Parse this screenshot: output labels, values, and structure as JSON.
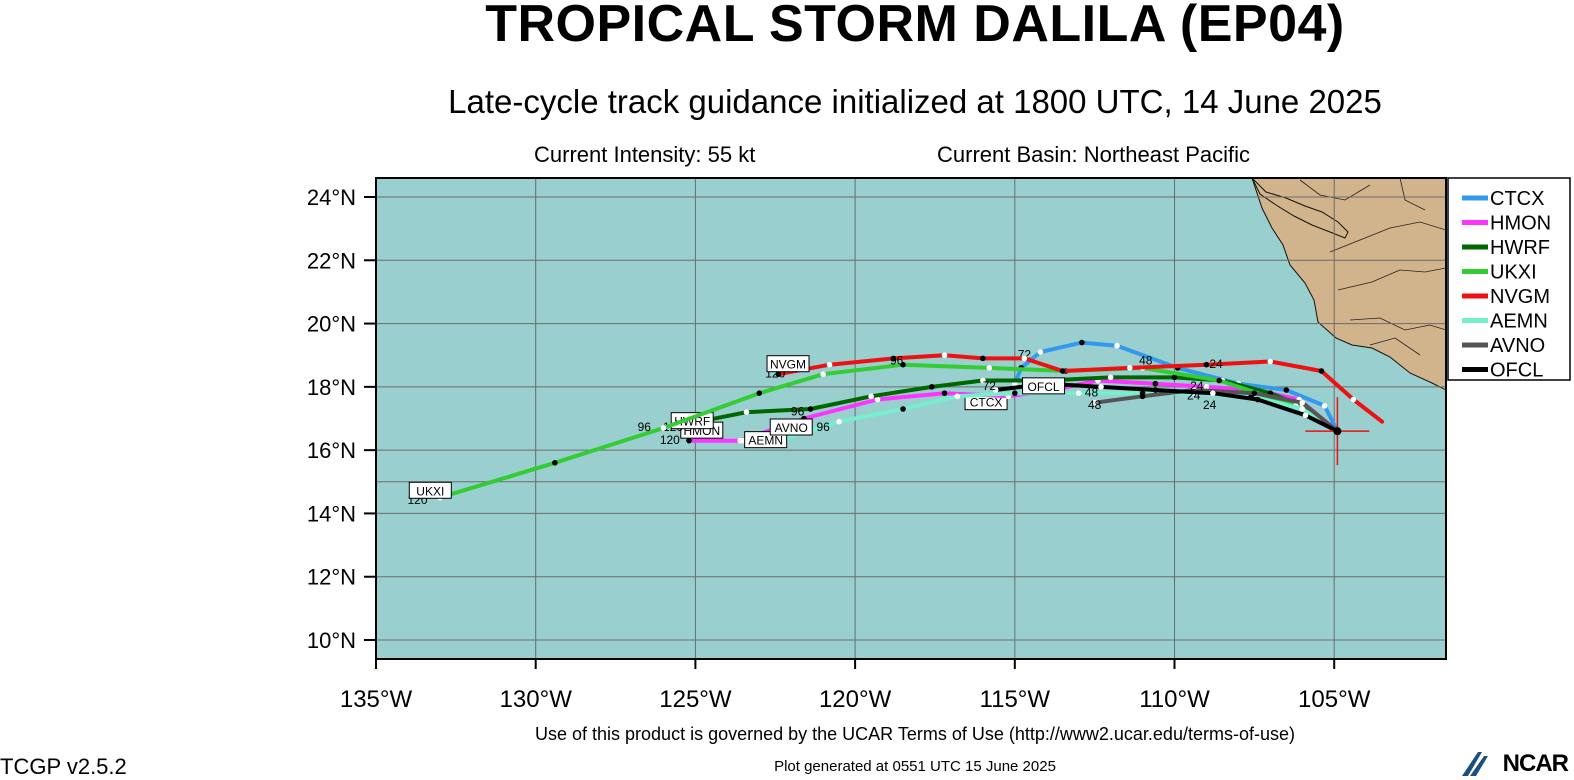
{
  "title": "TROPICAL STORM DALILA (EP04)",
  "subtitle": "Late-cycle track guidance initialized at 1800 UTC, 14 June 2025",
  "current_intensity": "Current Intensity: 55 kt",
  "current_basin": "Current Basin: Northeast Pacific",
  "terms": "Use of this product is governed by the UCAR Terms of Use (http://www2.ucar.edu/terms-of-use)",
  "version": "TCGP v2.5.2",
  "generated": "Plot generated at 0551 UTC   15 June 2025",
  "logo_text": "NCAR",
  "colors": {
    "ocean": "#99cfcf",
    "land": "#d2b48c",
    "grid": "#6b6b6b"
  },
  "chart_data": {
    "type": "map",
    "lon_range": [
      -135,
      -101.5
    ],
    "lat_range": [
      9.4,
      24.6
    ],
    "lon_ticks": [
      -135,
      -130,
      -125,
      -120,
      -115,
      -110,
      -105
    ],
    "lon_tick_labels": [
      "135°W",
      "130°W",
      "125°W",
      "120°W",
      "115°W",
      "110°W",
      "105°W"
    ],
    "lat_ticks": [
      10,
      12,
      14,
      16,
      18,
      20,
      22,
      24
    ],
    "lat_tick_labels": [
      "10°N",
      "12°N",
      "14°N",
      "16°N",
      "18°N",
      "20°N",
      "22°N",
      "24°N"
    ],
    "grid": true,
    "legend_position": "right",
    "initial_position": {
      "lon": -104.9,
      "lat": 16.6
    },
    "series": [
      {
        "name": "CTCX",
        "color": "#3399ee",
        "points": [
          [
            -104.9,
            16.6
          ],
          [
            -105.3,
            17.4
          ],
          [
            -106.5,
            17.9
          ],
          [
            -108.0,
            18.1
          ],
          [
            -109.9,
            18.6
          ],
          [
            -111.8,
            19.3
          ],
          [
            -112.9,
            19.4
          ],
          [
            -114.2,
            19.1
          ],
          [
            -114.8,
            18.6
          ],
          [
            -115.0,
            18.1
          ]
        ],
        "labels": [
          {
            "text": "72",
            "lon": -114.7,
            "lat": 18.9
          }
        ],
        "end_label": {
          "text": "CTCX",
          "lon": -115.9,
          "lat": 17.5
        }
      },
      {
        "name": "HMON",
        "color": "#ff33ff",
        "points": [
          [
            -104.9,
            16.6
          ],
          [
            -106.1,
            17.6
          ],
          [
            -107.5,
            17.9
          ],
          [
            -109.0,
            18.0
          ],
          [
            -110.6,
            18.1
          ],
          [
            -112.4,
            18.2
          ],
          [
            -113.8,
            17.9
          ],
          [
            -115.2,
            17.7
          ],
          [
            -117.2,
            17.8
          ],
          [
            -119.3,
            17.6
          ],
          [
            -121.6,
            17.0
          ],
          [
            -123.6,
            16.3
          ],
          [
            -125.2,
            16.3
          ]
        ],
        "labels": [
          {
            "text": "120",
            "lon": -125.8,
            "lat": 16.2
          }
        ],
        "end_label": {
          "text": "HMON",
          "lon": -124.8,
          "lat": 16.6
        }
      },
      {
        "name": "HWRF",
        "color": "#006600",
        "points": [
          [
            -104.9,
            16.6
          ],
          [
            -106.0,
            17.4
          ],
          [
            -107.0,
            17.8
          ],
          [
            -108.5,
            18.2
          ],
          [
            -110.0,
            18.3
          ],
          [
            -112.0,
            18.3
          ],
          [
            -114.0,
            18.2
          ],
          [
            -116.0,
            18.2
          ],
          [
            -117.6,
            18.0
          ],
          [
            -119.5,
            17.7
          ],
          [
            -121.4,
            17.3
          ],
          [
            -123.4,
            17.2
          ],
          [
            -124.9,
            16.9
          ]
        ],
        "labels": [
          {
            "text": "120",
            "lon": -125.7,
            "lat": 16.6
          },
          {
            "text": "96",
            "lon": -121.8,
            "lat": 17.1
          }
        ],
        "end_label": {
          "text": "HWRF",
          "lon": -125.1,
          "lat": 16.9
        }
      },
      {
        "name": "UKXI",
        "color": "#33cc33",
        "points": [
          [
            -104.9,
            16.6
          ],
          [
            -106.2,
            17.4
          ],
          [
            -108.6,
            18.2
          ],
          [
            -111.0,
            18.6
          ],
          [
            -113.4,
            18.5
          ],
          [
            -115.8,
            18.6
          ],
          [
            -118.5,
            18.7
          ],
          [
            -121.0,
            18.4
          ],
          [
            -123.0,
            17.8
          ],
          [
            -126.0,
            16.7
          ],
          [
            -129.4,
            15.6
          ],
          [
            -133.0,
            14.5
          ]
        ],
        "labels": [
          {
            "text": "96",
            "lon": -126.6,
            "lat": 16.6
          },
          {
            "text": "120",
            "lon": -133.7,
            "lat": 14.3
          }
        ],
        "end_label": {
          "text": "UKXI",
          "lon": -133.3,
          "lat": 14.7
        }
      },
      {
        "name": "NVGM",
        "color": "#ee1111",
        "points": [
          [
            -103.5,
            16.9
          ],
          [
            -104.4,
            17.6
          ],
          [
            -105.4,
            18.5
          ],
          [
            -107.0,
            18.8
          ],
          [
            -109.0,
            18.7
          ],
          [
            -111.4,
            18.6
          ],
          [
            -113.5,
            18.5
          ],
          [
            -114.7,
            18.9
          ],
          [
            -116.0,
            18.9
          ],
          [
            -117.2,
            19.0
          ],
          [
            -118.8,
            18.9
          ],
          [
            -120.8,
            18.7
          ],
          [
            -122.4,
            18.4
          ]
        ],
        "labels": [
          {
            "text": "96",
            "lon": -118.7,
            "lat": 18.7
          },
          {
            "text": "120",
            "lon": -122.5,
            "lat": 18.3
          },
          {
            "text": "24",
            "lon": -108.7,
            "lat": 18.6
          },
          {
            "text": "48",
            "lon": -110.9,
            "lat": 18.7
          }
        ],
        "end_label": {
          "text": "NVGM",
          "lon": -122.1,
          "lat": 18.7
        }
      },
      {
        "name": "AEMN",
        "color": "#77eecc",
        "points": [
          [
            -104.9,
            16.6
          ],
          [
            -106.0,
            17.3
          ],
          [
            -107.6,
            17.7
          ],
          [
            -109.4,
            17.8
          ],
          [
            -111.0,
            17.8
          ],
          [
            -113.0,
            17.8
          ],
          [
            -115.0,
            17.8
          ],
          [
            -116.8,
            17.7
          ],
          [
            -118.5,
            17.3
          ],
          [
            -120.5,
            16.9
          ],
          [
            -122.4,
            16.3
          ],
          [
            -123.5,
            16.3
          ]
        ],
        "labels": [
          {
            "text": "96",
            "lon": -121.0,
            "lat": 16.6
          }
        ],
        "end_label": {
          "text": "AEMN",
          "lon": -122.8,
          "lat": 16.3
        }
      },
      {
        "name": "AVNO",
        "color": "#555555",
        "points": [
          [
            -104.9,
            16.6
          ],
          [
            -106.0,
            17.5
          ],
          [
            -107.5,
            17.8
          ],
          [
            -109.4,
            17.9
          ],
          [
            -111.0,
            17.7
          ],
          [
            -112.5,
            17.5
          ]
        ],
        "labels": [
          {
            "text": "48",
            "lon": -112.5,
            "lat": 17.3
          },
          {
            "text": "24",
            "lon": -108.9,
            "lat": 17.3
          }
        ],
        "end_label": {
          "text": "AVNO",
          "lon": -122.0,
          "lat": 16.7
        }
      },
      {
        "name": "OFCL",
        "color": "#000000",
        "points": [
          [
            -104.9,
            16.6
          ],
          [
            -105.9,
            17.1
          ],
          [
            -107.4,
            17.6
          ],
          [
            -108.8,
            17.8
          ],
          [
            -110.6,
            17.9
          ],
          [
            -112.3,
            18.0
          ],
          [
            -114.0,
            18.1
          ],
          [
            -115.6,
            17.9
          ]
        ],
        "labels": [
          {
            "text": "72",
            "lon": -115.8,
            "lat": 17.9
          },
          {
            "text": "48",
            "lon": -112.6,
            "lat": 17.7
          },
          {
            "text": "24",
            "lon": -109.3,
            "lat": 17.9
          },
          {
            "text": "24",
            "lon": -109.4,
            "lat": 17.6
          }
        ],
        "end_label": {
          "text": "OFCL",
          "lon": -114.1,
          "lat": 18.0
        }
      }
    ]
  }
}
